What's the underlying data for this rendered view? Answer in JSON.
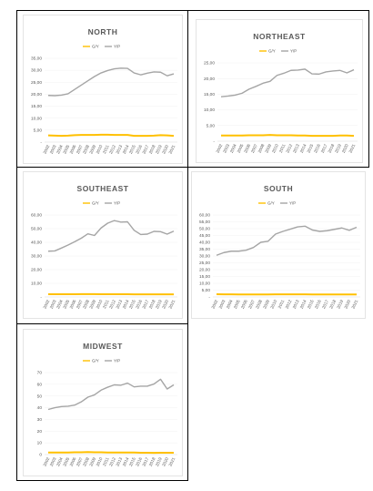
{
  "colors": {
    "gy": "#ffc000",
    "yp": "#a5a5a5"
  },
  "chart_data": [
    {
      "type": "line",
      "title": "NORTH",
      "x": [
        "2002",
        "2003",
        "2004",
        "2005",
        "2006",
        "2007",
        "2008",
        "2009",
        "2010",
        "2011",
        "2012",
        "2013",
        "2014",
        "2015",
        "2016",
        "2017",
        "2018",
        "2019",
        "2020",
        "2021"
      ],
      "ylim": [
        0,
        35
      ],
      "yticks": [
        "-",
        "5,00",
        "10,00",
        "15,00",
        "20,00",
        "25,00",
        "30,00",
        "35,00"
      ],
      "legend_position": "top",
      "series": [
        {
          "name": "G/Y",
          "color": "#ffc000",
          "values": [
            2.8,
            2.7,
            2.6,
            2.7,
            2.9,
            3.0,
            3.0,
            3.0,
            3.1,
            3.1,
            3.0,
            3.0,
            3.0,
            2.6,
            2.6,
            2.6,
            2.7,
            2.9,
            2.8,
            2.6
          ]
        },
        {
          "name": "Y/P",
          "color": "#a5a5a5",
          "values": [
            19.5,
            19.4,
            19.6,
            20.2,
            22.0,
            23.8,
            25.6,
            27.4,
            28.9,
            29.9,
            30.6,
            30.9,
            30.8,
            28.9,
            28.1,
            28.8,
            29.3,
            29.2,
            27.7,
            28.5
          ]
        }
      ]
    },
    {
      "type": "line",
      "title": "NORTHEAST",
      "x": [
        "2002",
        "2003",
        "2004",
        "2005",
        "2006",
        "2007",
        "2008",
        "2009",
        "2010",
        "2011",
        "2012",
        "2013",
        "2014",
        "2015",
        "2016",
        "2017",
        "2018",
        "2019",
        "2020",
        "2021"
      ],
      "ylim": [
        0,
        25
      ],
      "yticks": [
        "-",
        "5,00",
        "10,00",
        "15,00",
        "20,00",
        "25,00"
      ],
      "legend_position": "top",
      "series": [
        {
          "name": "G/Y",
          "color": "#ffc000",
          "values": [
            1.8,
            1.8,
            1.8,
            1.8,
            1.9,
            1.9,
            1.9,
            2.0,
            1.9,
            1.9,
            1.9,
            1.8,
            1.8,
            1.7,
            1.7,
            1.7,
            1.7,
            1.8,
            1.8,
            1.7
          ]
        },
        {
          "name": "Y/P",
          "color": "#a5a5a5",
          "values": [
            14.2,
            14.4,
            14.7,
            15.3,
            16.6,
            17.5,
            18.5,
            19.1,
            21.0,
            21.7,
            22.6,
            22.7,
            23.0,
            21.5,
            21.4,
            22.1,
            22.4,
            22.6,
            21.8,
            22.8
          ]
        }
      ]
    },
    {
      "type": "line",
      "title": "SOUTHEAST",
      "x": [
        "2002",
        "2003",
        "2004",
        "2005",
        "2006",
        "2007",
        "2008",
        "2009",
        "2010",
        "2011",
        "2012",
        "2013",
        "2014",
        "2015",
        "2016",
        "2017",
        "2018",
        "2019",
        "2020",
        "2021"
      ],
      "ylim": [
        0,
        60
      ],
      "yticks": [
        "-",
        "10,00",
        "20,00",
        "30,00",
        "40,00",
        "50,00",
        "60,00"
      ],
      "legend_position": "top",
      "series": [
        {
          "name": "G/Y",
          "color": "#ffc000",
          "values": [
            2.0,
            2.0,
            2.0,
            2.0,
            2.0,
            2.1,
            2.1,
            2.1,
            2.0,
            2.0,
            2.0,
            2.0,
            2.0,
            1.9,
            1.9,
            1.9,
            1.9,
            1.9,
            1.9,
            1.9
          ]
        },
        {
          "name": "Y/P",
          "color": "#a5a5a5",
          "values": [
            33.5,
            33.7,
            35.8,
            38.0,
            40.4,
            43.0,
            46.2,
            45.0,
            50.5,
            54.0,
            55.9,
            54.8,
            55.0,
            48.8,
            45.7,
            46.0,
            48.0,
            47.8,
            46.0,
            48.2
          ]
        }
      ]
    },
    {
      "type": "line",
      "title": "SOUTH",
      "x": [
        "2002",
        "2003",
        "2004",
        "2005",
        "2006",
        "2007",
        "2008",
        "2009",
        "2010",
        "2011",
        "2012",
        "2013",
        "2014",
        "2015",
        "2016",
        "2017",
        "2018",
        "2019",
        "2020",
        "2021"
      ],
      "ylim": [
        0,
        60
      ],
      "yticks": [
        "-",
        "5,00",
        "10,00",
        "15,00",
        "20,00",
        "25,00",
        "30,00",
        "35,00",
        "40,00",
        "45,00",
        "50,00",
        "55,00",
        "60,00"
      ],
      "legend_position": "top",
      "series": [
        {
          "name": "G/Y",
          "color": "#ffc000",
          "values": [
            2.0,
            1.9,
            1.9,
            1.8,
            1.8,
            1.8,
            1.8,
            1.8,
            1.9,
            1.9,
            1.9,
            1.9,
            1.9,
            1.8,
            1.8,
            1.8,
            1.8,
            1.8,
            1.8,
            1.8
          ]
        },
        {
          "name": "Y/P",
          "color": "#a5a5a5",
          "values": [
            30.5,
            32.5,
            33.5,
            33.5,
            34.2,
            36.2,
            40.0,
            40.8,
            46.0,
            48.0,
            49.6,
            51.3,
            51.8,
            49.0,
            48.0,
            48.5,
            49.5,
            50.5,
            48.8,
            51.0
          ]
        }
      ]
    },
    {
      "type": "line",
      "title": "MIDWEST",
      "x": [
        "2002",
        "2003",
        "2004",
        "2005",
        "2006",
        "2007",
        "2008",
        "2009",
        "2010",
        "2011",
        "2012",
        "2013",
        "2014",
        "2015",
        "2016",
        "2017",
        "2018",
        "2019",
        "2020",
        "2021"
      ],
      "ylim": [
        0,
        70
      ],
      "yticks": [
        "0",
        "10",
        "20",
        "30",
        "40",
        "50",
        "60",
        "70"
      ],
      "legend_position": "top",
      "series": [
        {
          "name": "G/Y",
          "color": "#ffc000",
          "values": [
            1.8,
            1.8,
            1.7,
            1.8,
            1.9,
            1.9,
            2.1,
            1.9,
            1.9,
            1.8,
            1.8,
            1.8,
            1.7,
            1.7,
            1.6,
            1.6,
            1.5,
            1.6,
            1.6,
            1.6
          ]
        },
        {
          "name": "Y/P",
          "color": "#a5a5a5",
          "values": [
            38.5,
            40.0,
            41.0,
            41.3,
            42.2,
            45.0,
            49.0,
            51.0,
            55.0,
            57.5,
            59.5,
            59.2,
            61.0,
            57.8,
            58.4,
            58.4,
            60.2,
            64.3,
            56.0,
            59.5
          ]
        }
      ]
    }
  ]
}
